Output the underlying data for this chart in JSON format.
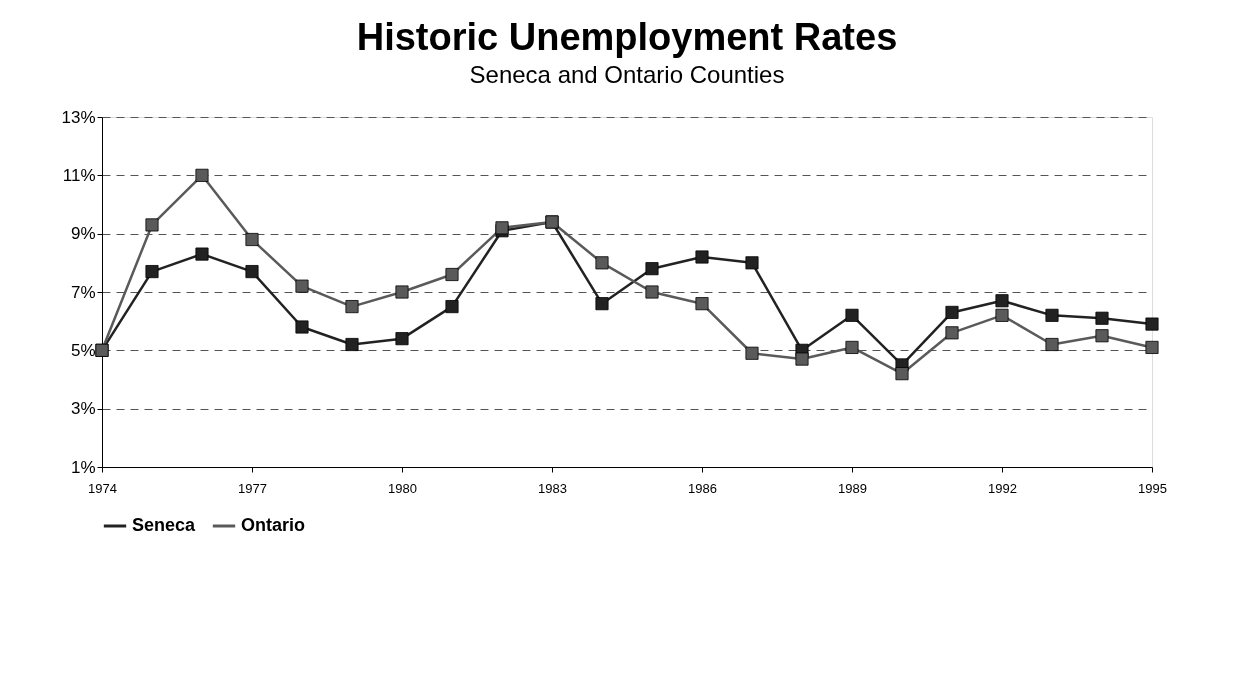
{
  "chart_data": {
    "type": "line",
    "title": "Historic Unemployment Rates",
    "subtitle": "Seneca and Ontario Counties",
    "x": [
      1974,
      1975,
      1976,
      1977,
      1978,
      1979,
      1980,
      1981,
      1982,
      1983,
      1984,
      1985,
      1986,
      1987,
      1988,
      1989,
      1990,
      1991,
      1992,
      1993,
      1994,
      1995
    ],
    "series": [
      {
        "name": "Seneca",
        "color": "#222222",
        "values": [
          5.0,
          7.7,
          8.3,
          7.7,
          5.8,
          5.2,
          5.4,
          6.5,
          9.1,
          9.4,
          6.6,
          7.8,
          8.2,
          8.0,
          5.0,
          6.2,
          4.5,
          6.3,
          6.7,
          6.2,
          6.1,
          5.9
        ]
      },
      {
        "name": "Ontario",
        "color": "#5a5a5a",
        "values": [
          5.0,
          9.3,
          11.0,
          8.8,
          7.2,
          6.5,
          7.0,
          7.6,
          9.2,
          9.4,
          8.0,
          7.0,
          6.6,
          4.9,
          4.7,
          5.1,
          4.2,
          5.6,
          6.2,
          5.2,
          5.5,
          5.1
        ]
      }
    ],
    "xlim": [
      1974,
      1995
    ],
    "xticks": [
      1974,
      1977,
      1980,
      1983,
      1986,
      1989,
      1992,
      1995
    ],
    "ylim": [
      1,
      13
    ],
    "yticks": [
      {
        "value": 1,
        "label": "1%"
      },
      {
        "value": 3,
        "label": "3%"
      },
      {
        "value": 5,
        "label": "5%"
      },
      {
        "value": 7,
        "label": "7%"
      },
      {
        "value": 9,
        "label": "9%"
      },
      {
        "value": 11,
        "label": "11%"
      },
      {
        "value": 13,
        "label": "13%"
      }
    ],
    "grid": "y",
    "legend": "bottom",
    "marker": "square",
    "line_style": "solid"
  }
}
